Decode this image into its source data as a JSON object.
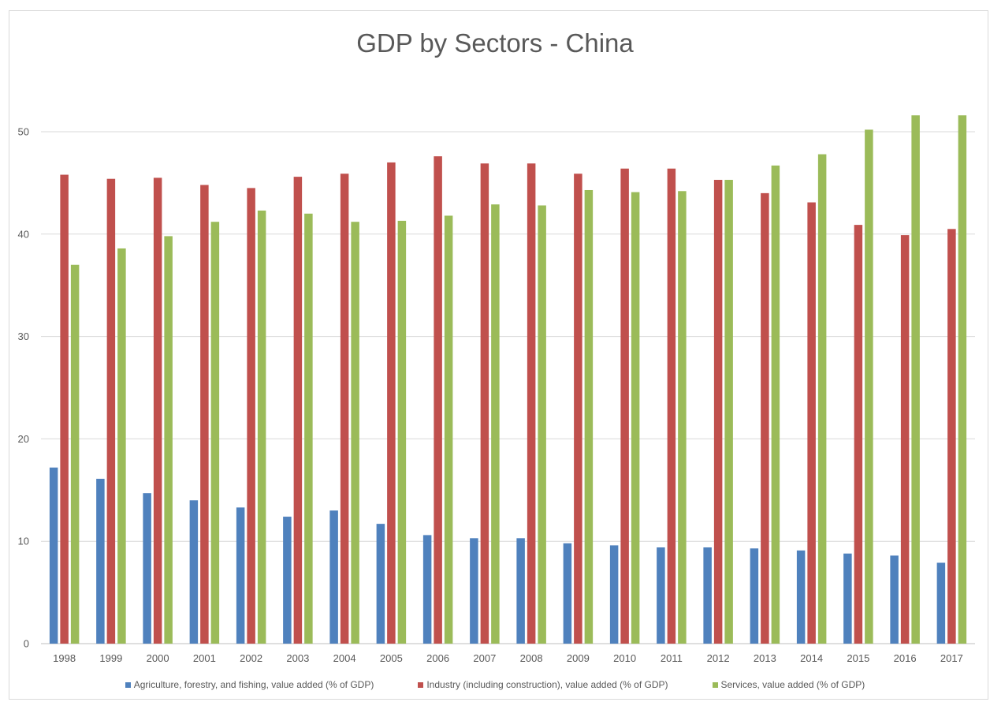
{
  "chart_data": {
    "type": "bar",
    "title": "GDP by Sectors - China",
    "xlabel": "",
    "ylabel": "",
    "ylim": [
      0,
      55
    ],
    "yticks": [
      0,
      10,
      20,
      30,
      40,
      50
    ],
    "grid": true,
    "legend_position": "bottom",
    "categories": [
      "1998",
      "1999",
      "2000",
      "2001",
      "2002",
      "2003",
      "2004",
      "2005",
      "2006",
      "2007",
      "2008",
      "2009",
      "2010",
      "2011",
      "2012",
      "2013",
      "2014",
      "2015",
      "2016",
      "2017"
    ],
    "series": [
      {
        "name": "Agriculture, forestry, and fishing, value added (% of GDP)",
        "color": "#4f81bd",
        "values": [
          17.2,
          16.1,
          14.7,
          14.0,
          13.3,
          12.4,
          13.0,
          11.7,
          10.6,
          10.3,
          10.3,
          9.8,
          9.6,
          9.4,
          9.4,
          9.3,
          9.1,
          8.8,
          8.6,
          7.9
        ]
      },
      {
        "name": "Industry (including construction), value added (% of GDP)",
        "color": "#c0504d",
        "values": [
          45.8,
          45.4,
          45.5,
          44.8,
          44.5,
          45.6,
          45.9,
          47.0,
          47.6,
          46.9,
          46.9,
          45.9,
          46.4,
          46.4,
          45.3,
          44.0,
          43.1,
          40.9,
          39.9,
          40.5
        ]
      },
      {
        "name": "Services, value added (% of GDP)",
        "color": "#9bbb59",
        "values": [
          37.0,
          38.6,
          39.8,
          41.2,
          42.3,
          42.0,
          41.2,
          41.3,
          41.8,
          42.9,
          42.8,
          44.3,
          44.1,
          44.2,
          45.3,
          46.7,
          47.8,
          50.2,
          51.6,
          51.6
        ]
      }
    ]
  }
}
